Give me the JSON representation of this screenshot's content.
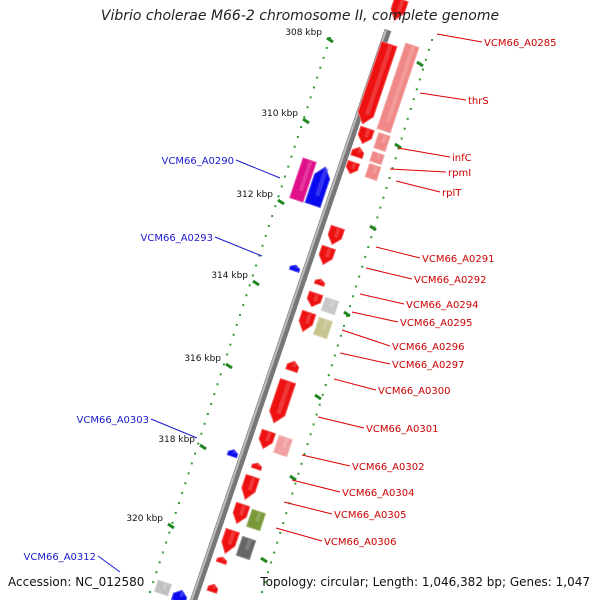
{
  "title": "Vibrio cholerae M66-2 chromosome II, complete genome",
  "footer": {
    "accession": "Accession: NC_012580",
    "summary": "Topology: circular; Length: 1,046,382 bp; Genes: 1,047"
  },
  "colors": {
    "forward_gene": "#ff0000",
    "reverse_gene": "#0000ff",
    "backbone": "#888888",
    "scale_dots": "#339933",
    "forward_label": "#cc0000",
    "reverse_label": "#1a1acc"
  },
  "scale_ticks": [
    "308 kbp",
    "310 kbp",
    "312 kbp",
    "314 kbp",
    "316 kbp",
    "318 kbp",
    "320 kbp"
  ],
  "labels_right": [
    "VCM66_A0285",
    "thrS",
    "infC",
    "rpmI",
    "rplT",
    "VCM66_A0291",
    "VCM66_A0292",
    "VCM66_A0294",
    "VCM66_A0295",
    "VCM66_A0296",
    "VCM66_A0297",
    "VCM66_A0300",
    "VCM66_A0301",
    "VCM66_A0302",
    "VCM66_A0304",
    "VCM66_A0305",
    "VCM66_A0306"
  ],
  "labels_left": [
    "VCM66_A0290",
    "VCM66_A0293",
    "VCM66_A0303",
    "VCM66_A0312"
  ]
}
